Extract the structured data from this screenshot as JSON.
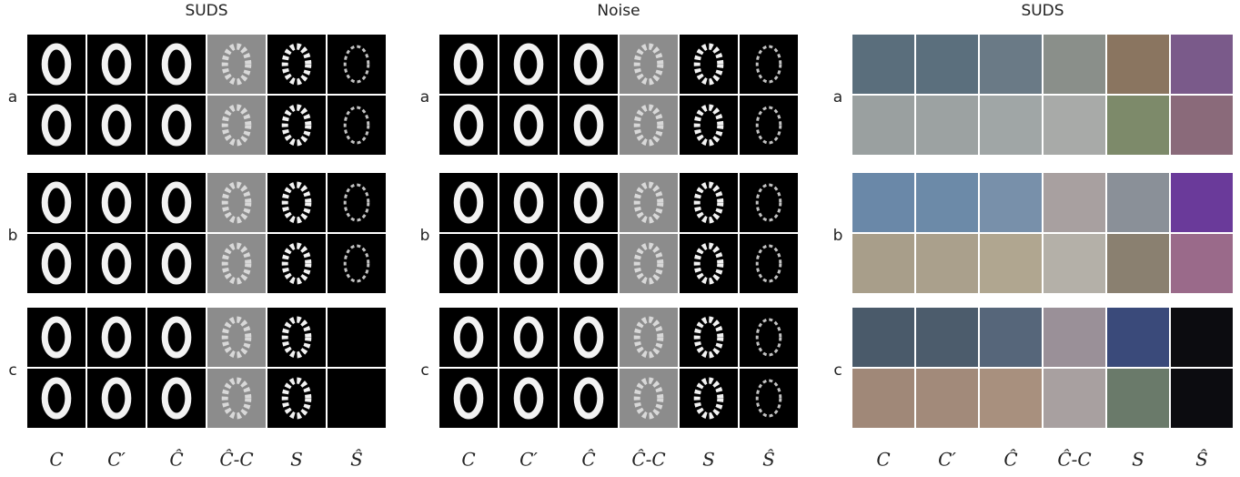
{
  "panels": [
    {
      "title": "SUDS",
      "rows": [
        "a",
        "b",
        "c"
      ],
      "columns": [
        "C",
        "C′",
        "Ĉ",
        "Ĉ-C",
        "S",
        "Ŝ"
      ]
    },
    {
      "title": "Noise",
      "rows": [
        "a",
        "b",
        "c"
      ],
      "columns": [
        "C",
        "C′",
        "Ĉ",
        "Ĉ-C",
        "S",
        "Ŝ"
      ]
    },
    {
      "title": "SUDS",
      "rows": [
        "a",
        "b",
        "c"
      ],
      "columns": [
        "C",
        "C′",
        "Ĉ",
        "Ĉ-C",
        "S",
        "Ŝ"
      ]
    }
  ]
}
